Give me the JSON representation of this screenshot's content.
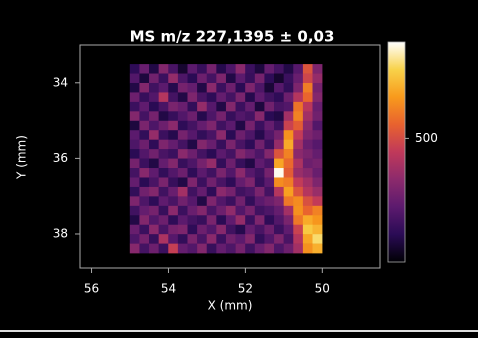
{
  "chart_data": {
    "type": "heatmap",
    "title": "MS m/z 227,1395 ± 0,03",
    "x_label": "X (mm)",
    "y_label": "Y (mm)",
    "xlim": [
      56.3,
      48.5
    ],
    "ylim": [
      38.9,
      33.0
    ],
    "xticks": [
      56,
      54,
      52,
      50
    ],
    "yticks": [
      34,
      36,
      38
    ],
    "zlim": [
      0,
      890
    ],
    "zticks": [
      500
    ],
    "colormap": [
      "#000004",
      "#2a0b55",
      "#5c1a6e",
      "#8c2a6c",
      "#c0395a",
      "#e8622f",
      "#f89a1c",
      "#f8d24a",
      "#ffffff"
    ],
    "x": [
      54.88,
      54.63,
      54.38,
      54.13,
      53.88,
      53.63,
      53.38,
      53.13,
      52.88,
      52.63,
      52.38,
      52.13,
      51.88,
      51.63,
      51.38,
      51.13,
      50.88,
      50.63,
      50.38,
      50.13
    ],
    "y": [
      33.63,
      33.88,
      34.13,
      34.38,
      34.63,
      34.88,
      35.13,
      35.38,
      35.63,
      35.88,
      36.13,
      36.38,
      36.63,
      36.88,
      37.13,
      37.38,
      37.63,
      37.88,
      38.13,
      38.38
    ],
    "z": [
      [
        120,
        250,
        90,
        310,
        180,
        60,
        220,
        140,
        280,
        100,
        190,
        330,
        150,
        80,
        240,
        170,
        90,
        210,
        520,
        300
      ],
      [
        200,
        80,
        270,
        150,
        350,
        190,
        110,
        260,
        170,
        300,
        90,
        220,
        140,
        280,
        120,
        60,
        150,
        250,
        480,
        350
      ],
      [
        90,
        310,
        160,
        220,
        100,
        280,
        240,
        90,
        330,
        150,
        260,
        110,
        300,
        190,
        70,
        210,
        130,
        300,
        610,
        280
      ],
      [
        260,
        140,
        200,
        420,
        170,
        90,
        300,
        180,
        120,
        240,
        170,
        290,
        100,
        230,
        160,
        120,
        260,
        420,
        560,
        310
      ],
      [
        150,
        230,
        110,
        180,
        290,
        250,
        130,
        350,
        210,
        90,
        310,
        150,
        240,
        80,
        270,
        180,
        200,
        590,
        430,
        250
      ],
      [
        310,
        170,
        280,
        90,
        140,
        200,
        260,
        100,
        190,
        280,
        140,
        200,
        170,
        320,
        110,
        90,
        380,
        620,
        380,
        270
      ],
      [
        80,
        290,
        190,
        260,
        330,
        120,
        170,
        240,
        300,
        160,
        220,
        90,
        280,
        150,
        240,
        160,
        470,
        540,
        330,
        200
      ],
      [
        220,
        130,
        350,
        150,
        100,
        280,
        210,
        130,
        180,
        330,
        110,
        260,
        190,
        100,
        200,
        280,
        650,
        450,
        300,
        260
      ],
      [
        190,
        260,
        120,
        300,
        240,
        170,
        90,
        310,
        250,
        140,
        290,
        180,
        120,
        270,
        150,
        350,
        700,
        380,
        250,
        210
      ],
      [
        110,
        200,
        270,
        180,
        150,
        330,
        260,
        170,
        110,
        220,
        170,
        310,
        250,
        190,
        310,
        520,
        620,
        330,
        290,
        240
      ],
      [
        280,
        150,
        90,
        240,
        310,
        140,
        190,
        280,
        350,
        130,
        260,
        140,
        90,
        230,
        180,
        690,
        570,
        400,
        260,
        280
      ],
      [
        170,
        320,
        230,
        130,
        200,
        260,
        120,
        220,
        160,
        290,
        200,
        330,
        210,
        160,
        280,
        880,
        540,
        360,
        320,
        250
      ],
      [
        240,
        110,
        180,
        290,
        140,
        90,
        300,
        150,
        270,
        180,
        120,
        240,
        300,
        140,
        220,
        640,
        610,
        450,
        380,
        300
      ],
      [
        130,
        270,
        310,
        160,
        250,
        380,
        160,
        240,
        120,
        330,
        280,
        160,
        190,
        290,
        170,
        420,
        680,
        520,
        420,
        360
      ],
      [
        300,
        190,
        120,
        230,
        180,
        270,
        210,
        90,
        300,
        200,
        150,
        270,
        130,
        220,
        260,
        300,
        600,
        640,
        510,
        450
      ],
      [
        160,
        240,
        280,
        140,
        330,
        150,
        250,
        310,
        180,
        260,
        340,
        200,
        280,
        160,
        190,
        240,
        380,
        650,
        560,
        620
      ],
      [
        90,
        310,
        200,
        260,
        120,
        220,
        170,
        140,
        290,
        110,
        230,
        350,
        150,
        300,
        120,
        200,
        290,
        600,
        700,
        660
      ],
      [
        250,
        150,
        330,
        180,
        280,
        300,
        120,
        260,
        200,
        320,
        160,
        100,
        240,
        180,
        260,
        150,
        230,
        470,
        760,
        720
      ],
      [
        190,
        280,
        140,
        400,
        210,
        130,
        290,
        180,
        330,
        150,
        270,
        220,
        310,
        130,
        200,
        300,
        180,
        420,
        690,
        800
      ],
      [
        320,
        170,
        260,
        150,
        460,
        240,
        200,
        310,
        140,
        240,
        190,
        280,
        160,
        250,
        310,
        190,
        260,
        380,
        650,
        710
      ]
    ]
  }
}
